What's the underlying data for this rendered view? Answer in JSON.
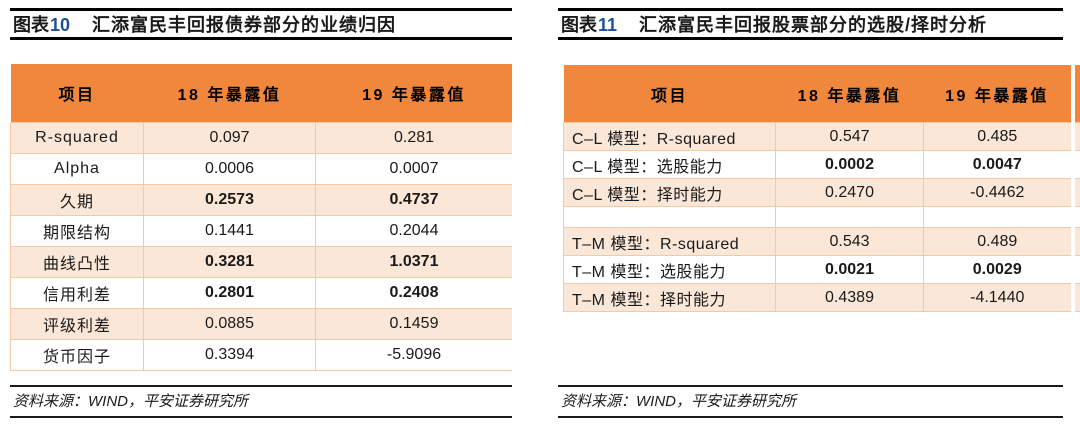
{
  "colors": {
    "header_orange": "#F0873C",
    "row_shade": "#FBE7D7",
    "cell_border": "#F5C9A3",
    "figure_number_blue": "#1F4E9C"
  },
  "figures": [
    {
      "figure_label": "图表",
      "figure_number": "10",
      "title": "汇添富民丰回报债券部分的业绩归因",
      "columns": [
        "项目",
        "18 年暴露值",
        "19 年暴露值"
      ],
      "rows": [
        {
          "label": "R-squared",
          "v18": "0.097",
          "v19": "0.281",
          "bold": false
        },
        {
          "label": "Alpha",
          "v18": "0.0006",
          "v19": "0.0007",
          "bold": false
        },
        {
          "label": "久期",
          "v18": "0.2573",
          "v19": "0.4737",
          "bold": true
        },
        {
          "label": "期限结构",
          "v18": "0.1441",
          "v19": "0.2044",
          "bold": false
        },
        {
          "label": "曲线凸性",
          "v18": "0.3281",
          "v19": "1.0371",
          "bold": true
        },
        {
          "label": "信用利差",
          "v18": "0.2801",
          "v19": "0.2408",
          "bold": true
        },
        {
          "label": "评级利差",
          "v18": "0.0885",
          "v19": "0.1459",
          "bold": false
        },
        {
          "label": "货币因子",
          "v18": "0.3394",
          "v19": "-5.9096",
          "bold": false
        }
      ],
      "source": "资料来源：WIND，平安证券研究所",
      "clipped_extra_column": false
    },
    {
      "figure_label": "图表",
      "figure_number": "11",
      "title": "汇添富民丰回报股票部分的选股/择时分析",
      "columns": [
        "项目",
        "18 年暴露值",
        "19 年暴露值"
      ],
      "rows": [
        {
          "label": "C–L 模型：R-squared",
          "v18": "0.547",
          "v19": "0.485",
          "bold": false
        },
        {
          "label": "C–L 模型：选股能力",
          "v18": "0.0002",
          "v19": "0.0047",
          "bold": true
        },
        {
          "label": "C–L 模型：择时能力",
          "v18": "0.2470",
          "v19": "-0.4462",
          "bold": false
        },
        {
          "label": "",
          "v18": "",
          "v19": "",
          "bold": false
        },
        {
          "label": "T–M 模型：R-squared",
          "v18": "0.543",
          "v19": "0.489",
          "bold": false
        },
        {
          "label": "T–M 模型：选股能力",
          "v18": "0.0021",
          "v19": "0.0029",
          "bold": true
        },
        {
          "label": "T–M 模型：择时能力",
          "v18": "0.4389",
          "v19": "-4.1440",
          "bold": false
        }
      ],
      "source": "资料来源：WIND，平安证券研究所",
      "clipped_extra_column": true
    }
  ]
}
